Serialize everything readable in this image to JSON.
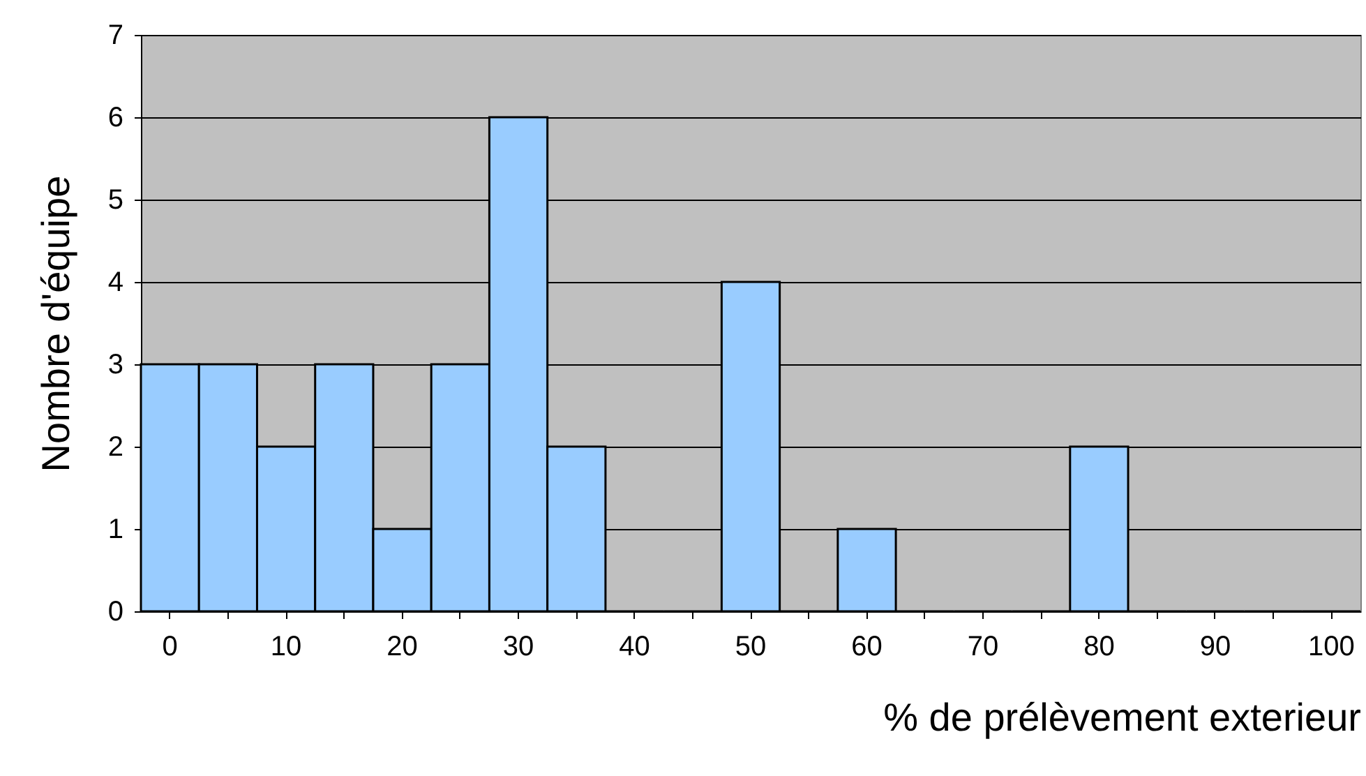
{
  "chart_data": {
    "type": "bar",
    "xlabel": "% de prélèvement exterieur",
    "ylabel": "Nombre d'équipe",
    "categories": [
      "0",
      null,
      "10",
      null,
      "20",
      null,
      "30",
      null,
      "40",
      null,
      "50",
      null,
      "60",
      null,
      "70",
      null,
      "80",
      null,
      "90",
      null,
      "100"
    ],
    "values": [
      3,
      3,
      2,
      3,
      1,
      3,
      6,
      2,
      0,
      0,
      4,
      0,
      1,
      0,
      0,
      0,
      2,
      0,
      0,
      0,
      0
    ],
    "color": "#99ccff",
    "ylim": [
      0,
      7
    ],
    "yticks": [
      0,
      1,
      2,
      3,
      4,
      5,
      6,
      7
    ],
    "grid": "y"
  }
}
